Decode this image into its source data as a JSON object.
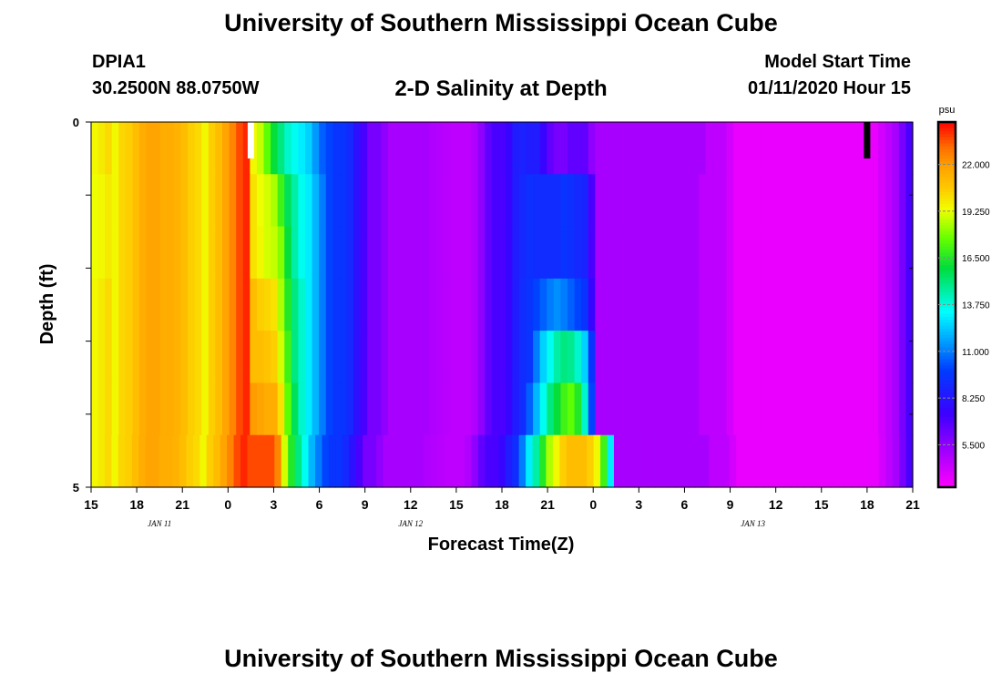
{
  "header": {
    "title": "University of Southern Mississippi Ocean Cube",
    "station_id": "DPIA1",
    "station_coords": "30.2500N 88.0750W",
    "chart_title": "2-D Salinity at Depth",
    "model_start_label": "Model Start Time",
    "model_start_value": "01/11/2020 Hour 15"
  },
  "footer": {
    "title": "University of Southern Mississippi Ocean Cube"
  },
  "chart_data": {
    "type": "heatmap",
    "title": "2-D Salinity at Depth",
    "xlabel": "Forecast Time(Z)",
    "ylabel": "Depth (ft)",
    "x_hours_from_start": [
      0,
      54
    ],
    "y_range": [
      0,
      5
    ],
    "y_tick_labels": [
      "0",
      "5"
    ],
    "x_tick_labels": [
      "15",
      "18",
      "21",
      "0",
      "3",
      "6",
      "9",
      "12",
      "15",
      "18",
      "21",
      "0",
      "3",
      "6",
      "9",
      "12",
      "15",
      "18",
      "21"
    ],
    "date_labels": [
      {
        "text": "JAN 11",
        "hour": 4.5
      },
      {
        "text": "JAN 12",
        "hour": 21
      },
      {
        "text": "JAN 13",
        "hour": 43.5
      }
    ],
    "colorbar": {
      "unit": "psu",
      "ticks": [
        "22.000",
        "19.250",
        "16.500",
        "13.750",
        "11.000",
        "8.250",
        "5.500"
      ],
      "tick_values": [
        22.0,
        19.25,
        16.5,
        13.75,
        11.0,
        8.25,
        5.5
      ],
      "min": 3.0,
      "max": 24.5
    },
    "white_marker_hour": 10.5,
    "black_marker_hour": 51,
    "layers": [
      [
        19.5,
        19.8,
        20.2,
        19.5,
        20.3,
        20.5,
        21,
        21.5,
        21.8,
        21.8,
        21.5,
        21.5,
        21.3,
        21,
        20.5,
        20.2,
        19.5,
        20.5,
        21,
        21.8,
        22.5,
        23.5,
        24,
        19.5,
        18.8,
        17.5,
        16,
        15,
        14,
        13.5,
        13,
        12.5,
        11.5,
        10.5,
        10,
        9.5,
        9.5,
        9,
        8,
        7,
        6,
        6,
        5.5,
        5,
        5,
        5,
        5,
        5,
        5,
        4.8,
        4.7,
        4.6,
        4.5,
        4.5,
        4.5,
        4.8,
        5.5,
        6.5,
        7,
        7,
        7.5,
        8.5,
        8.7,
        8.5,
        8.5,
        7.5,
        6.5,
        6,
        6,
        6.5,
        6.5,
        6.5,
        5.5,
        5,
        5,
        5,
        5,
        5,
        5,
        5,
        5,
        5,
        5,
        5,
        5,
        5,
        5,
        5,
        5,
        4.5,
        4.5,
        4.5,
        4,
        3.5,
        3.5,
        3.5,
        3.5,
        3.5,
        3.5,
        3.5,
        3.5,
        3.5,
        3.5,
        3.5,
        3.5,
        3.5,
        3.5,
        3.5,
        3.5,
        3.5,
        3.5,
        3.5,
        3.5,
        3.5,
        4,
        4.5,
        5,
        6,
        7
      ],
      [
        19.3,
        19.5,
        19.8,
        19.5,
        20.3,
        20.5,
        21,
        21.5,
        21.8,
        21.8,
        21.5,
        21.5,
        21.3,
        21,
        20.5,
        20.2,
        19.5,
        20.5,
        21,
        21.8,
        22.5,
        23.5,
        24,
        20,
        19.3,
        19,
        18.5,
        17,
        15.5,
        14.5,
        13.5,
        13,
        12,
        11,
        10,
        9.5,
        9.5,
        9,
        8,
        7,
        6,
        6,
        5.5,
        5,
        5,
        5,
        5,
        5,
        5,
        4.8,
        4.7,
        4.6,
        4.5,
        4.5,
        4.5,
        4.8,
        5.5,
        6.5,
        7,
        7,
        7.5,
        8.5,
        9,
        9.3,
        9.2,
        9.2,
        9.2,
        9.2,
        9.5,
        9.3,
        9,
        8.8,
        7,
        5,
        5,
        5,
        5,
        5,
        5,
        5,
        5,
        5,
        5,
        5,
        5,
        5,
        5,
        5,
        4.5,
        4.5,
        4.5,
        4.5,
        4,
        3.5,
        3.5,
        3.5,
        3.5,
        3.5,
        3.5,
        3.5,
        3.5,
        3.5,
        3.5,
        3.5,
        3.5,
        3.5,
        3.5,
        3.5,
        3.5,
        3.5,
        3.5,
        3.5,
        3.5,
        3.5,
        4,
        4.5,
        5,
        6,
        7
      ],
      [
        19.3,
        19.5,
        19.8,
        19.5,
        20.3,
        20.5,
        21,
        21.5,
        21.8,
        21.8,
        21.5,
        21.5,
        21.3,
        21,
        20.5,
        20.2,
        19.5,
        20.5,
        21,
        21.8,
        22.5,
        23.5,
        24,
        20,
        19.5,
        19,
        18.8,
        18,
        16,
        14.5,
        13.5,
        13,
        12,
        11,
        10,
        9.5,
        9.5,
        9,
        8,
        7,
        6,
        6,
        5.5,
        5,
        5,
        5,
        5,
        5,
        5,
        4.8,
        4.7,
        4.6,
        4.5,
        4.5,
        4.5,
        4.8,
        5.5,
        6.5,
        7,
        7,
        7.5,
        8.5,
        9,
        9.3,
        9.2,
        9.2,
        9.2,
        9.2,
        9.5,
        9.3,
        9,
        8.8,
        7,
        5,
        5,
        5,
        5,
        5,
        5,
        5,
        5,
        5,
        5,
        5,
        5,
        5,
        5,
        5,
        4.5,
        4.5,
        4.5,
        4.5,
        4,
        3.5,
        3.5,
        3.5,
        3.5,
        3.5,
        3.5,
        3.5,
        3.5,
        3.5,
        3.5,
        3.5,
        3.5,
        3.5,
        3.5,
        3.5,
        3.5,
        3.5,
        3.5,
        3.5,
        3.5,
        3.5,
        4,
        4.5,
        5,
        6,
        7
      ],
      [
        19.5,
        19.8,
        20.2,
        19.5,
        20.3,
        20.5,
        21,
        21.5,
        21.8,
        21.8,
        21.5,
        21.5,
        21.3,
        21,
        20.5,
        20.2,
        19.5,
        20.5,
        21,
        21.8,
        22.5,
        23.5,
        24,
        21,
        20.5,
        20.3,
        20,
        18.5,
        16.5,
        15,
        14,
        13,
        12,
        11,
        10,
        9.5,
        9.5,
        9,
        8,
        7,
        6,
        6,
        5.5,
        5,
        5,
        5,
        5,
        5,
        5,
        4.8,
        4.7,
        4.6,
        4.5,
        4.5,
        4.5,
        4.8,
        5.5,
        6.5,
        7,
        7,
        7.5,
        8.5,
        9.2,
        9.5,
        10,
        10.5,
        11,
        11.3,
        11,
        10.5,
        10,
        9.5,
        7.5,
        5,
        5,
        5,
        5,
        5,
        5,
        5,
        5,
        5,
        5,
        5,
        5,
        5,
        5,
        5,
        4.5,
        4.5,
        4.5,
        4.5,
        4,
        3.5,
        3.5,
        3.5,
        3.5,
        3.5,
        3.5,
        3.5,
        3.5,
        3.5,
        3.5,
        3.5,
        3.5,
        3.5,
        3.5,
        3.5,
        3.5,
        3.5,
        3.5,
        3.5,
        3.5,
        3.5,
        4,
        4.5,
        5,
        6,
        7
      ],
      [
        19.5,
        19.8,
        20.2,
        19.5,
        20.3,
        20.5,
        21,
        21.5,
        21.8,
        21.8,
        21.5,
        21.5,
        21.3,
        21,
        20.5,
        20.2,
        19.5,
        20.5,
        21,
        21.8,
        22.5,
        23.5,
        24,
        21,
        21,
        20.8,
        20.5,
        19,
        17,
        15,
        14,
        13,
        12,
        11,
        10,
        9.5,
        9.5,
        9,
        8,
        7,
        6,
        6,
        5.5,
        5,
        5,
        5,
        5,
        5,
        5,
        4.8,
        4.7,
        4.6,
        4.5,
        4.5,
        4.5,
        4.8,
        5.5,
        6.5,
        7,
        7,
        7.5,
        8.5,
        9.2,
        9.5,
        11,
        12.5,
        13.5,
        14.5,
        15,
        14.8,
        14,
        12.5,
        9.5,
        5,
        5,
        5,
        5,
        5,
        5,
        5,
        5,
        5,
        5,
        5,
        5,
        5,
        5,
        5,
        4.5,
        4.5,
        4.5,
        4.5,
        4,
        3.5,
        3.5,
        3.5,
        3.5,
        3.5,
        3.5,
        3.5,
        3.5,
        3.5,
        3.5,
        3.5,
        3.5,
        3.5,
        3.5,
        3.5,
        3.5,
        3.5,
        3.5,
        3.5,
        3.5,
        3.5,
        4,
        4.5,
        5,
        6,
        7
      ],
      [
        19.5,
        19.8,
        20.2,
        19.5,
        20.3,
        20.5,
        21,
        21.5,
        21.8,
        21.8,
        21.5,
        21.5,
        21.3,
        21,
        20.5,
        20.2,
        19.5,
        20.5,
        21,
        21.8,
        22.5,
        23.5,
        24,
        22,
        21.8,
        21.5,
        21.5,
        20,
        17.5,
        15.5,
        14,
        13,
        12,
        11,
        10,
        9.5,
        9.5,
        9,
        8,
        7,
        6,
        6,
        5.5,
        5,
        5,
        5,
        5,
        5,
        5,
        4.8,
        4.7,
        4.6,
        4.5,
        4.5,
        4.5,
        4.8,
        5.5,
        6.5,
        7,
        7,
        7.5,
        8.5,
        9.2,
        10.5,
        12,
        13.5,
        15,
        16,
        17,
        17.5,
        16.5,
        14,
        10,
        5,
        5,
        5,
        5,
        5,
        5,
        5,
        5,
        5,
        5,
        5,
        5,
        5,
        5,
        5,
        4.5,
        4.5,
        4.5,
        4.5,
        4,
        3.5,
        3.5,
        3.5,
        3.5,
        3.5,
        3.5,
        3.5,
        3.5,
        3.5,
        3.5,
        3.5,
        3.5,
        3.5,
        3.5,
        3.5,
        3.5,
        3.5,
        3.5,
        3.5,
        3.5,
        3.5,
        4,
        4.5,
        5,
        6,
        7
      ],
      [
        19.5,
        19.8,
        20.2,
        19.5,
        20.3,
        20.5,
        21,
        21.5,
        21.8,
        21.8,
        21.5,
        21.5,
        21.3,
        21,
        20.5,
        20.2,
        19.5,
        20.5,
        21,
        21.8,
        22.5,
        23.5,
        24,
        23.5,
        23.5,
        23.5,
        23.5,
        22.5,
        19,
        16.5,
        15,
        13.5,
        12,
        11,
        10,
        9.5,
        9.5,
        9,
        8,
        7,
        6,
        6,
        5.5,
        5,
        5,
        5,
        5,
        5,
        5,
        4.8,
        4.7,
        4.6,
        4.5,
        4.5,
        4.5,
        4.8,
        5.5,
        6.5,
        7,
        7,
        7.5,
        8.5,
        9.2,
        11,
        13,
        14.5,
        16.5,
        18.5,
        19.5,
        20.5,
        21,
        21,
        21,
        20.5,
        19.5,
        17,
        13,
        5,
        5,
        5,
        5,
        5,
        5,
        5,
        5,
        5,
        5,
        5,
        5,
        5,
        5,
        4.5,
        4.5,
        4.5,
        4,
        3.5,
        3.5,
        3.5,
        3.5,
        3.5,
        3.5,
        3.5,
        3.5,
        3.5,
        3.5,
        3.5,
        3.5,
        3.5,
        3.5,
        3.5,
        3.5,
        3.5,
        3.5,
        3.5,
        3.5,
        3.5,
        4,
        4.5,
        5,
        6,
        7
      ]
    ]
  }
}
